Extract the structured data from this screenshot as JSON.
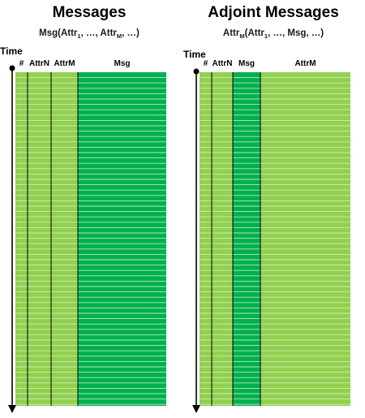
{
  "colors": {
    "light_green": "#92d050",
    "dark_green": "#00b050",
    "stripe": "#d8f0c8",
    "axis": "#000000"
  },
  "icons": {
    "time_origin": "filled-dot",
    "time_direction": "down-arrow"
  },
  "left_panel": {
    "title": "Messages",
    "formula": {
      "parts": [
        {
          "text": "Msg(Attr",
          "sub": false
        },
        {
          "text": "1",
          "sub": true
        },
        {
          "text": ", …, Attr",
          "sub": false
        },
        {
          "text": "M",
          "sub": true
        },
        {
          "text": ", …)",
          "sub": false
        }
      ]
    },
    "time_label": "Time",
    "columns": [
      {
        "label": "#",
        "fill": "light"
      },
      {
        "label": "AttrN",
        "fill": "light"
      },
      {
        "label": "AttrM",
        "fill": "light"
      },
      {
        "label": "Msg",
        "fill": "dark"
      }
    ]
  },
  "right_panel": {
    "title": "Adjoint Messages",
    "formula": {
      "parts": [
        {
          "text": "Attr",
          "sub": false
        },
        {
          "text": "M",
          "sub": true
        },
        {
          "text": "(Attr",
          "sub": false
        },
        {
          "text": "1",
          "sub": true
        },
        {
          "text": ", …, Msg, …)",
          "sub": false
        }
      ]
    },
    "time_label": "Time",
    "columns": [
      {
        "label": "#",
        "fill": "light"
      },
      {
        "label": "AttrN",
        "fill": "light"
      },
      {
        "label": "Msg",
        "fill": "dark"
      },
      {
        "label": "AttrM",
        "fill": "light"
      }
    ]
  }
}
